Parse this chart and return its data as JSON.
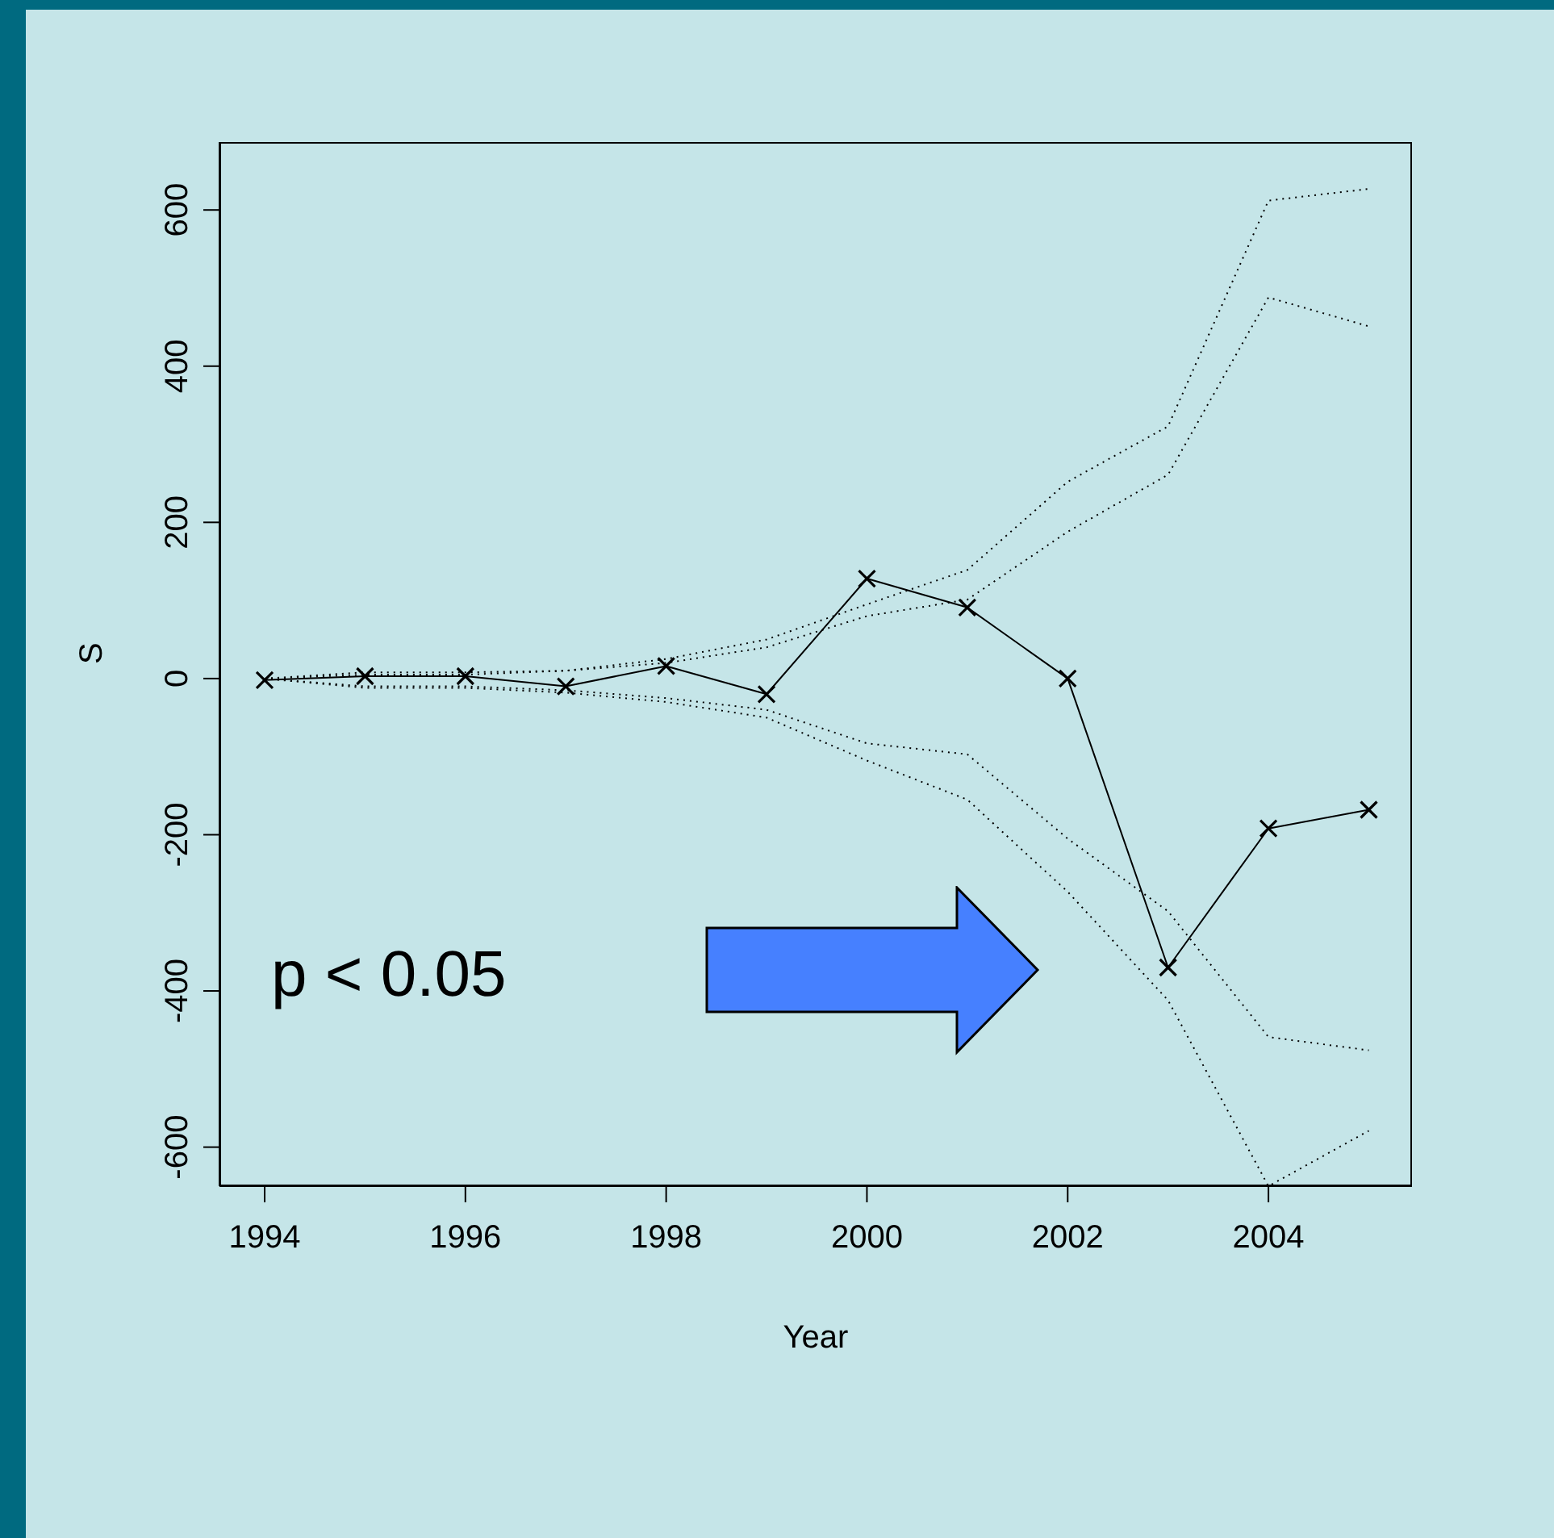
{
  "chart_data": {
    "type": "line",
    "xlabel": "Year",
    "ylabel": "S",
    "x": [
      1994,
      1995,
      1996,
      1997,
      1998,
      1999,
      2000,
      2001,
      2002,
      2003,
      2004,
      2005
    ],
    "xlim": [
      1993.55,
      2005.43
    ],
    "xticks": [
      1994,
      1996,
      1998,
      2000,
      2002,
      2004
    ],
    "ylim": [
      -650,
      687
    ],
    "yticks": [
      -600,
      -400,
      -200,
      0,
      200,
      400,
      600
    ],
    "series": [
      {
        "color": "#000000",
        "line_style": "solid",
        "marker": "cross",
        "values": [
          -2,
          3,
          3,
          -10,
          16,
          -20,
          128,
          91,
          0,
          -370,
          -192,
          -168
        ]
      },
      {
        "color": "#000000",
        "line_style": "dotted",
        "marker": "none",
        "values": [
          0,
          8,
          8,
          10,
          25,
          50,
          95,
          139,
          252,
          323,
          612,
          627
        ]
      },
      {
        "color": "#000000",
        "line_style": "dotted",
        "marker": "none",
        "values": [
          0,
          5,
          5,
          10,
          20,
          40,
          80,
          101,
          188,
          261,
          488,
          451
        ]
      },
      {
        "color": "#000000",
        "line_style": "dotted",
        "marker": "none",
        "values": [
          0,
          -10,
          -10,
          -15,
          -25,
          -40,
          -83,
          -97,
          -205,
          -298,
          -459,
          -476
        ]
      },
      {
        "color": "#000000",
        "line_style": "dotted",
        "marker": "none",
        "values": [
          0,
          -12,
          -12,
          -18,
          -30,
          -50,
          -105,
          -155,
          -273,
          -412,
          -650,
          -579
        ]
      }
    ],
    "annotations": [
      "p < 0.05"
    ]
  }
}
